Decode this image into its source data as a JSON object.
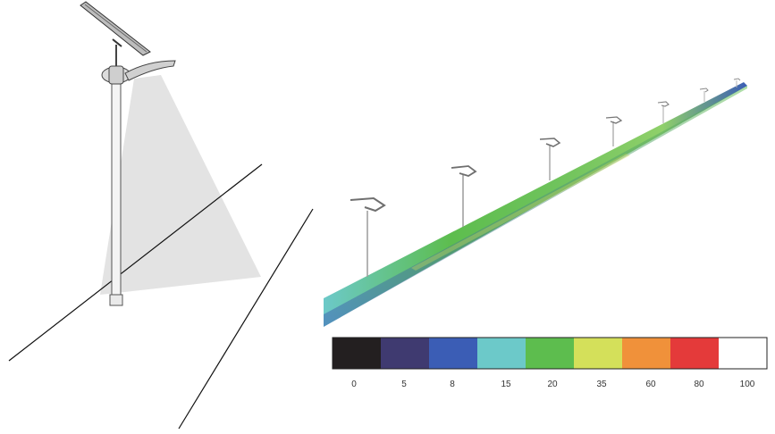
{
  "legend": {
    "labels": [
      "0",
      "5",
      "8",
      "15",
      "20",
      "35",
      "60",
      "80",
      "100"
    ],
    "colors": [
      "#231f20",
      "#3f3a70",
      "#3b5db5",
      "#6cc9c9",
      "#5dbd4e",
      "#d4e05a",
      "#f0913a",
      "#e43a3a",
      "#ffffff"
    ]
  },
  "scene": {
    "pole_count": 7,
    "road_colors": [
      "#3b5db5",
      "#6cc9c9",
      "#5dbd4e",
      "#d4e05a"
    ]
  }
}
